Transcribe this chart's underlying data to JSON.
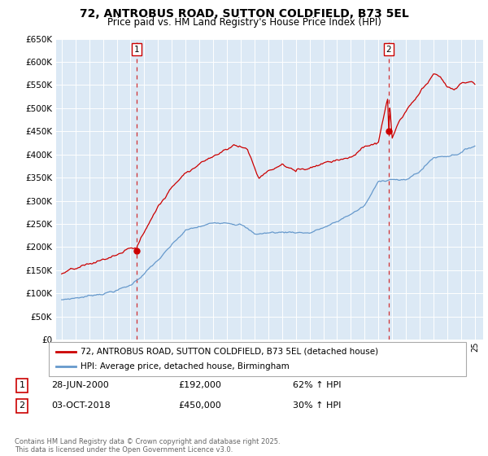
{
  "title_line1": "72, ANTROBUS ROAD, SUTTON COLDFIELD, B73 5EL",
  "title_line2": "Price paid vs. HM Land Registry's House Price Index (HPI)",
  "legend_line1": "72, ANTROBUS ROAD, SUTTON COLDFIELD, B73 5EL (detached house)",
  "legend_line2": "HPI: Average price, detached house, Birmingham",
  "transaction1_label": "1",
  "transaction1_date": "28-JUN-2000",
  "transaction1_price": "£192,000",
  "transaction1_hpi": "62% ↑ HPI",
  "transaction2_label": "2",
  "transaction2_date": "03-OCT-2018",
  "transaction2_price": "£450,000",
  "transaction2_hpi": "30% ↑ HPI",
  "footer": "Contains HM Land Registry data © Crown copyright and database right 2025.\nThis data is licensed under the Open Government Licence v3.0.",
  "red_color": "#cc0000",
  "blue_color": "#6699cc",
  "bg_color": "#dce9f5",
  "ylim_min": 0,
  "ylim_max": 650000,
  "t1_year": 2000.458,
  "t2_year": 2018.75,
  "p1": 192000,
  "p2": 450000
}
